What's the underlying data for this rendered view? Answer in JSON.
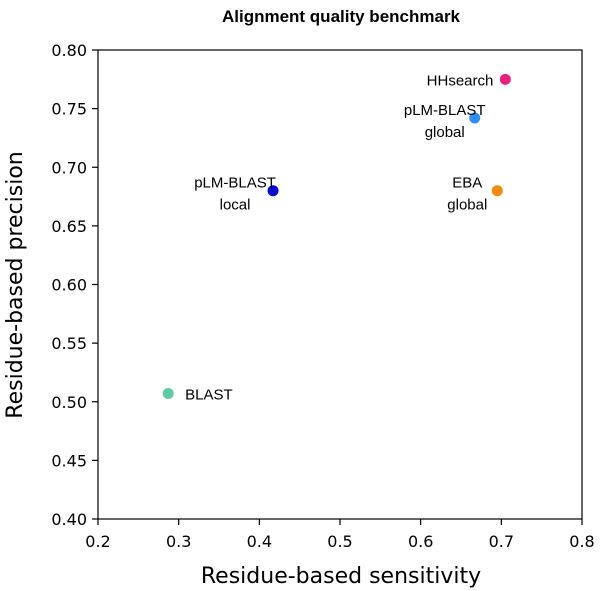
{
  "chart_data": {
    "type": "scatter",
    "title": "Alignment quality benchmark",
    "xlabel": "Residue-based sensitivity",
    "ylabel": "Residue-based precision",
    "xlim": [
      0.2,
      0.8
    ],
    "ylim": [
      0.4,
      0.8
    ],
    "xticks": [
      "0.2",
      "0.3",
      "0.4",
      "0.5",
      "0.6",
      "0.7",
      "0.8"
    ],
    "yticks": [
      "0.40",
      "0.45",
      "0.50",
      "0.55",
      "0.60",
      "0.65",
      "0.70",
      "0.75",
      "0.80"
    ],
    "grid": false,
    "points": [
      {
        "label_lines": [
          "HHsearch"
        ],
        "x": 0.705,
        "y": 0.775,
        "color": "#e8207f"
      },
      {
        "label_lines": [
          "pLM-BLAST",
          "global"
        ],
        "x": 0.667,
        "y": 0.742,
        "color": "#2e8ff0"
      },
      {
        "label_lines": [
          "pLM-BLAST",
          "local"
        ],
        "x": 0.417,
        "y": 0.68,
        "color": "#0a0ad0"
      },
      {
        "label_lines": [
          "EBA",
          "global"
        ],
        "x": 0.695,
        "y": 0.68,
        "color": "#f28a12"
      },
      {
        "label_lines": [
          "BLAST"
        ],
        "x": 0.287,
        "y": 0.507,
        "color": "#5fcaa5"
      }
    ]
  }
}
